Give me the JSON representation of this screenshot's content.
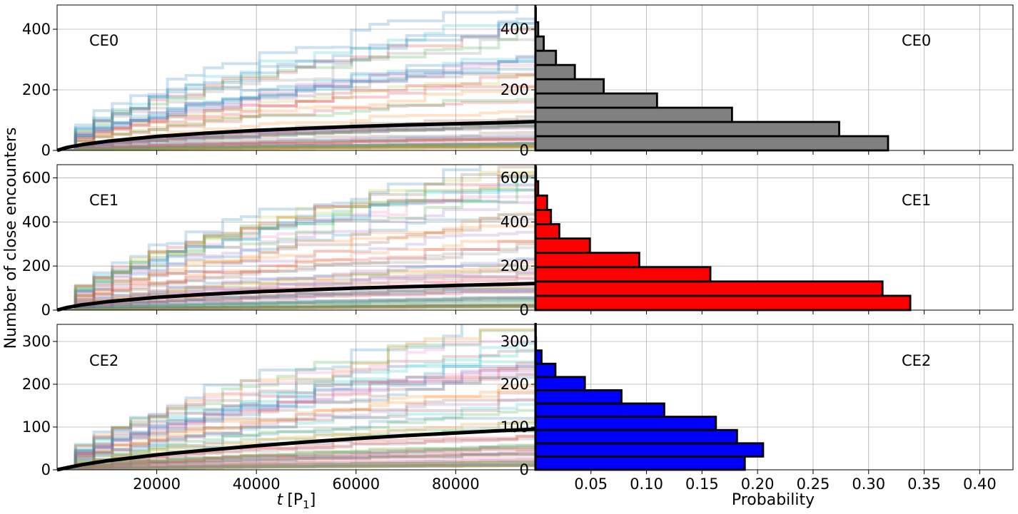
{
  "figure": {
    "ylabel": "Number of close encounters",
    "xlabel_left_var": "t",
    "xlabel_left_unit": "[P",
    "xlabel_left_sub": "1",
    "xlabel_left_close": "]",
    "xlabel_right": "Probability"
  },
  "chart_data": [
    {
      "type": "line",
      "panel": "CE0",
      "xlim": [
        0,
        96000
      ],
      "ylim": [
        0,
        480
      ],
      "xticks": [
        20000,
        40000,
        60000,
        80000
      ],
      "xtick_labels": [
        "20000",
        "40000",
        "60000",
        "80000"
      ],
      "yticks": [
        0,
        200,
        400
      ],
      "ytick_labels": [
        "0",
        "200",
        "400"
      ],
      "grid": true,
      "mean_curve": {
        "x": [
          0,
          2000,
          5000,
          10000,
          20000,
          30000,
          40000,
          50000,
          60000,
          70000,
          80000,
          90000,
          96000
        ],
        "y": [
          0,
          10,
          19,
          30,
          46,
          57,
          66,
          73,
          79,
          84,
          88,
          92,
          95
        ]
      },
      "background_trajectories_max_y": 480,
      "background_trajectory_colors": [
        "#1f77b4",
        "#ff7f0e",
        "#2ca02c",
        "#d62728",
        "#9467bd",
        "#8c564b",
        "#e377c2",
        "#7f7f7f",
        "#bcbd22",
        "#17becf"
      ]
    },
    {
      "type": "bar",
      "orientation": "horizontal",
      "panel": "CE0",
      "bar_color": "#808080",
      "xlim": [
        0,
        0.43
      ],
      "ylim": [
        0,
        480
      ],
      "xticks": [
        0.05,
        0.1,
        0.15,
        0.2,
        0.25,
        0.3,
        0.35,
        0.4
      ],
      "yticks": [
        0,
        200,
        400
      ],
      "ytick_labels": [
        "0",
        "200",
        "400"
      ],
      "bin_edges": [
        0,
        47,
        94,
        141,
        188,
        235,
        282,
        329,
        376,
        423,
        470
      ],
      "values": [
        0.3175,
        0.2735,
        0.177,
        0.1095,
        0.0615,
        0.0355,
        0.0185,
        0.0075,
        0.0025,
        0.0004
      ]
    },
    {
      "type": "line",
      "panel": "CE1",
      "xlim": [
        0,
        96000
      ],
      "ylim": [
        0,
        660
      ],
      "xticks": [
        20000,
        40000,
        60000,
        80000
      ],
      "yticks": [
        0,
        200,
        400,
        600
      ],
      "ytick_labels": [
        "0",
        "200",
        "400",
        "600"
      ],
      "grid": true,
      "mean_curve": {
        "x": [
          0,
          2000,
          5000,
          10000,
          20000,
          30000,
          40000,
          50000,
          60000,
          70000,
          80000,
          90000,
          96000
        ],
        "y": [
          0,
          12,
          24,
          38,
          58,
          72,
          83,
          92,
          100,
          106,
          112,
          117,
          121
        ]
      },
      "background_trajectories_max_y": 660
    },
    {
      "type": "bar",
      "orientation": "horizontal",
      "panel": "CE1",
      "bar_color": "#ff0000",
      "xlim": [
        0,
        0.43
      ],
      "ylim": [
        0,
        660
      ],
      "xticks": [
        0.05,
        0.1,
        0.15,
        0.2,
        0.25,
        0.3,
        0.35,
        0.4
      ],
      "yticks": [
        0,
        200,
        400,
        600
      ],
      "ytick_labels": [
        "0",
        "200",
        "400",
        "600"
      ],
      "bin_edges": [
        0,
        65,
        130,
        195,
        260,
        325,
        390,
        455,
        520,
        585,
        650
      ],
      "values": [
        0.3375,
        0.3125,
        0.1575,
        0.0935,
        0.049,
        0.0215,
        0.014,
        0.0105,
        0.0025,
        0.0005
      ]
    },
    {
      "type": "line",
      "panel": "CE2",
      "xlim": [
        0,
        96000
      ],
      "ylim": [
        0,
        340
      ],
      "xticks": [
        20000,
        40000,
        60000,
        80000
      ],
      "xtick_labels": [
        "20000",
        "40000",
        "60000",
        "80000"
      ],
      "yticks": [
        0,
        100,
        200,
        300
      ],
      "ytick_labels": [
        "0",
        "100",
        "200",
        "300"
      ],
      "grid": true,
      "mean_curve": {
        "x": [
          0,
          2000,
          5000,
          10000,
          20000,
          30000,
          40000,
          50000,
          60000,
          70000,
          80000,
          90000,
          96000
        ],
        "y": [
          0,
          5,
          12,
          21,
          35,
          46,
          56,
          65,
          73,
          80,
          86,
          92,
          95
        ]
      },
      "background_trajectories_max_y": 340
    },
    {
      "type": "bar",
      "orientation": "horizontal",
      "panel": "CE2",
      "bar_color": "#0000ff",
      "xlim": [
        0,
        0.43
      ],
      "ylim": [
        0,
        340
      ],
      "xticks": [
        0.05,
        0.1,
        0.15,
        0.2,
        0.25,
        0.3,
        0.35,
        0.4
      ],
      "xtick_labels": [
        "0.05",
        "0.10",
        "0.15",
        "0.20",
        "0.25",
        "0.30",
        "0.35",
        "0.40"
      ],
      "yticks": [
        0,
        100,
        200,
        300
      ],
      "ytick_labels": [
        "0",
        "100",
        "200",
        "300"
      ],
      "bin_edges": [
        0,
        31,
        62,
        93,
        124,
        155,
        186,
        217,
        248,
        279,
        310,
        341
      ],
      "values": [
        0.1885,
        0.205,
        0.1815,
        0.1625,
        0.116,
        0.0775,
        0.0445,
        0.018,
        0.0055,
        0.0005,
        0.0001
      ]
    }
  ]
}
